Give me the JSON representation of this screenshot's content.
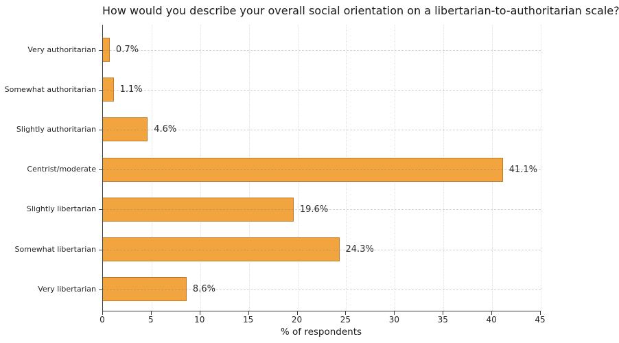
{
  "title": "How would you describe your overall social orientation on a libertarian-to-authoritarian scale?",
  "chart_data": {
    "type": "bar",
    "orientation": "horizontal",
    "title": "How would you describe your overall social orientation on a libertarian-to-authoritarian scale?",
    "categories": [
      "Very authoritarian",
      "Somewhat authoritarian",
      "Slightly authoritarian",
      "Centrist/moderate",
      "Slightly libertarian",
      "Somewhat libertarian",
      "Very libertarian"
    ],
    "values": [
      0.7,
      1.1,
      4.6,
      41.1,
      19.6,
      24.3,
      8.6
    ],
    "value_labels": [
      "0.7%",
      "1.1%",
      "4.6%",
      "41.1%",
      "19.6%",
      "24.3%",
      "8.6%"
    ],
    "xlabel": "% of respondents",
    "ylabel": "",
    "xlim": [
      0,
      45
    ],
    "xticks": [
      0,
      5,
      10,
      15,
      20,
      25,
      30,
      35,
      40,
      45
    ],
    "grid": "on",
    "legend": "none",
    "bar_color": "#F2A43E",
    "bar_edge_color": "#C2792A"
  }
}
